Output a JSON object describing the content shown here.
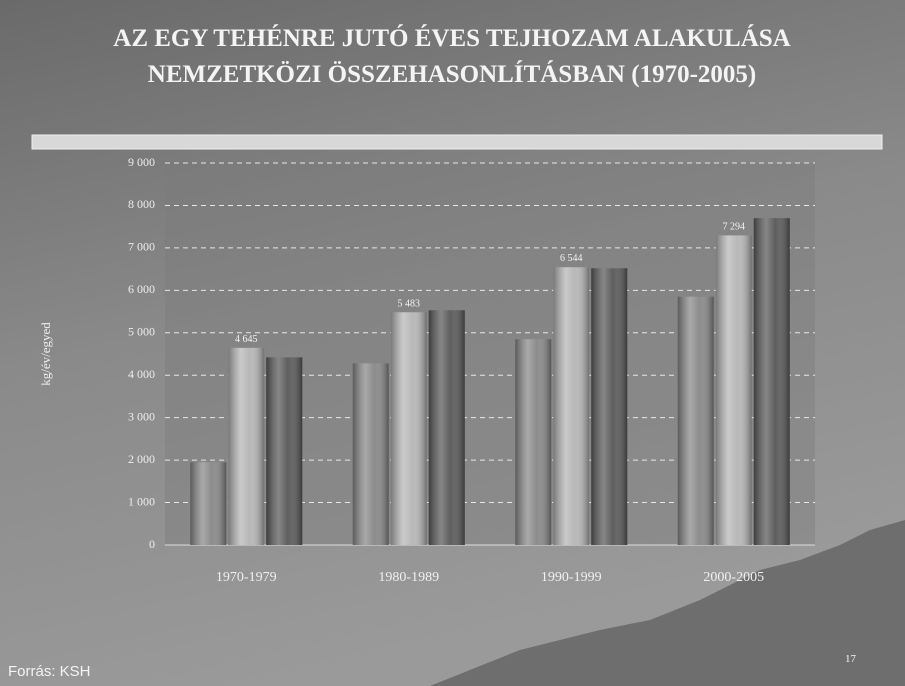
{
  "title_lines": [
    "AZ EGY TEHÉNRE JUTÓ ÉVES TEJHOZAM ALAKULÁSA",
    "NEMZETKÖZI ÖSSZEHASONLÍTÁSBAN (1970-2005)"
  ],
  "source": "Forrás: KSH",
  "page_number": "17",
  "chart_data": {
    "type": "bar",
    "y_label": "kg/év/egyed",
    "categories": [
      "1970-1979",
      "1980-1989",
      "1990-1999",
      "2000-2005"
    ],
    "series": [
      {
        "color": "#8c8c8c",
        "values": [
          1950,
          4280,
          4850,
          5850
        ]
      },
      {
        "color": "#b8b8b8",
        "values": [
          4645,
          5483,
          6544,
          7294
        ],
        "value_labels": [
          "4 645",
          "5 483",
          "6 544",
          "7 294"
        ]
      },
      {
        "color": "#5e5e5e",
        "values": [
          4420,
          5530,
          6520,
          7700
        ]
      }
    ],
    "ylim": [
      0,
      9000
    ],
    "yticks": [
      0,
      {
        "value": 1000,
        "label": "1 000"
      },
      {
        "value": 2000,
        "label": "2 000"
      },
      {
        "value": 3000,
        "label": "3 000"
      },
      {
        "value": 4000,
        "label": "4 000"
      },
      {
        "value": 5000,
        "label": "5 000"
      },
      {
        "value": 6000,
        "label": "6 000"
      },
      {
        "value": 7000,
        "label": "7 000"
      },
      {
        "value": 8000,
        "label": "8 000"
      },
      {
        "value": 9000,
        "label": "9 000"
      }
    ],
    "grid": true
  }
}
